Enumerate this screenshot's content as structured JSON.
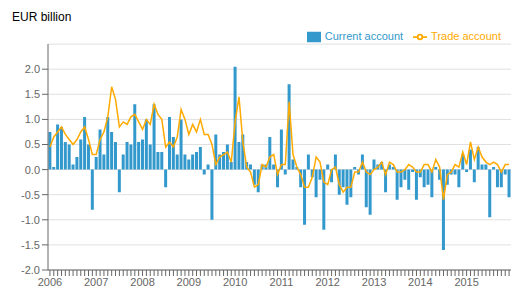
{
  "chart_data": {
    "type": "bar",
    "ylabel": "EUR billion",
    "categories": [
      "2006",
      null,
      null,
      null,
      null,
      null,
      null,
      null,
      null,
      null,
      null,
      null,
      "2007",
      null,
      null,
      null,
      null,
      null,
      null,
      null,
      null,
      null,
      null,
      null,
      "2008",
      null,
      null,
      null,
      null,
      null,
      null,
      null,
      null,
      null,
      null,
      null,
      "2009",
      null,
      null,
      null,
      null,
      null,
      null,
      null,
      null,
      null,
      null,
      null,
      "2010",
      null,
      null,
      null,
      null,
      null,
      null,
      null,
      null,
      null,
      null,
      null,
      "2011",
      null,
      null,
      null,
      null,
      null,
      null,
      null,
      null,
      null,
      null,
      null,
      "2012",
      null,
      null,
      null,
      null,
      null,
      null,
      null,
      null,
      null,
      null,
      null,
      "2013",
      null,
      null,
      null,
      null,
      null,
      null,
      null,
      null,
      null,
      null,
      null,
      "2014",
      null,
      null,
      null,
      null,
      null,
      null,
      null,
      null,
      null,
      null,
      null,
      "2015",
      null,
      null,
      null,
      null,
      null,
      null,
      null,
      null,
      null,
      null,
      null
    ],
    "series": [
      {
        "name": "Current account",
        "type": "bar",
        "color": "#3399cc",
        "values": [
          0.75,
          0.05,
          0.9,
          0.85,
          0.55,
          0.5,
          0.1,
          0.25,
          0.6,
          1.05,
          0.5,
          -0.8,
          0.25,
          0.8,
          0.3,
          1.05,
          0.75,
          0.55,
          -0.45,
          0.3,
          0.55,
          0.5,
          1.3,
          0.55,
          0.6,
          1.0,
          0.5,
          1.3,
          0.35,
          0.35,
          -0.35,
          1.05,
          0.65,
          0.3,
          1.0,
          0.3,
          0.2,
          0.3,
          0.35,
          0.45,
          -0.1,
          0.1,
          -1.0,
          0.7,
          0.3,
          0.35,
          0.5,
          0.15,
          2.05,
          0.55,
          0.7,
          0.15,
          0.1,
          -0.3,
          -0.45,
          0.1,
          0.1,
          0.65,
          0.1,
          -0.35,
          0.8,
          -0.1,
          1.7,
          0.2,
          0.05,
          -0.35,
          -1.1,
          0.3,
          -0.15,
          -0.55,
          -0.2,
          -1.2,
          0.1,
          -0.25,
          0.3,
          -0.5,
          -0.35,
          -0.7,
          -0.55,
          0.05,
          -0.1,
          0.3,
          -0.75,
          -0.9,
          0.2,
          0.1,
          0.15,
          -0.45,
          0.1,
          0.05,
          -0.6,
          -0.35,
          -0.2,
          -0.4,
          -0.05,
          -0.6,
          -0.15,
          -0.35,
          -0.3,
          -0.55,
          0.05,
          -0.2,
          -1.6,
          -0.3,
          -0.1,
          -0.1,
          -0.35,
          0.3,
          -0.05,
          0.4,
          -0.25,
          0.45,
          0.1,
          0.1,
          -0.95,
          0.05,
          -0.35,
          -0.35,
          -0.1,
          -0.55
        ]
      },
      {
        "name": "Trade account",
        "type": "line",
        "color": "#ffaa00",
        "values": [
          0.45,
          0.65,
          0.75,
          0.85,
          0.7,
          0.6,
          0.5,
          0.6,
          0.75,
          0.85,
          0.6,
          0.3,
          0.3,
          0.6,
          0.75,
          1.05,
          1.65,
          1.4,
          0.85,
          0.95,
          0.9,
          1.05,
          1.1,
          0.95,
          0.8,
          1.0,
          0.9,
          1.3,
          1.1,
          1.0,
          0.45,
          0.55,
          0.45,
          0.65,
          1.2,
          1.0,
          0.7,
          0.9,
          0.75,
          1.0,
          0.7,
          0.7,
          0.5,
          0.1,
          0.25,
          0.3,
          0.35,
          0.15,
          0.95,
          1.45,
          0.55,
          0.05,
          -0.05,
          -0.35,
          -0.3,
          0.1,
          0.05,
          0.25,
          0.3,
          -0.1,
          0.1,
          0.1,
          1.35,
          0.3,
          0.05,
          -0.1,
          -0.35,
          -0.35,
          -0.15,
          0.25,
          0.15,
          -0.25,
          -0.3,
          0.0,
          0.05,
          -0.3,
          -0.45,
          -0.35,
          -0.35,
          -0.05,
          -0.05,
          0.15,
          -0.05,
          -0.1,
          0.0,
          0.05,
          0.15,
          -0.1,
          0.15,
          0.1,
          -0.05,
          -0.05,
          0.0,
          0.1,
          0.05,
          -0.05,
          -0.05,
          0.1,
          0.1,
          -0.05,
          0.2,
          0.05,
          -0.6,
          -0.1,
          -0.05,
          0.1,
          0.05,
          0.35,
          0.1,
          0.55,
          0.2,
          0.45,
          0.25,
          0.15,
          0.1,
          0.15,
          0.1,
          -0.05,
          0.1,
          0.1
        ]
      }
    ],
    "ylim": [
      -2.0,
      2.5
    ],
    "yticks": [
      {
        "value": -2,
        "label": "-2.0"
      },
      -1.5,
      {
        "value": -1,
        "label": "-1.0"
      },
      -0.5,
      {
        "value": 0,
        "label": "0.0"
      },
      0.5,
      {
        "value": 1,
        "label": "1.0"
      },
      1.5,
      {
        "value": 2,
        "label": "2.0"
      }
    ],
    "grid": true,
    "legend": "upper right"
  }
}
